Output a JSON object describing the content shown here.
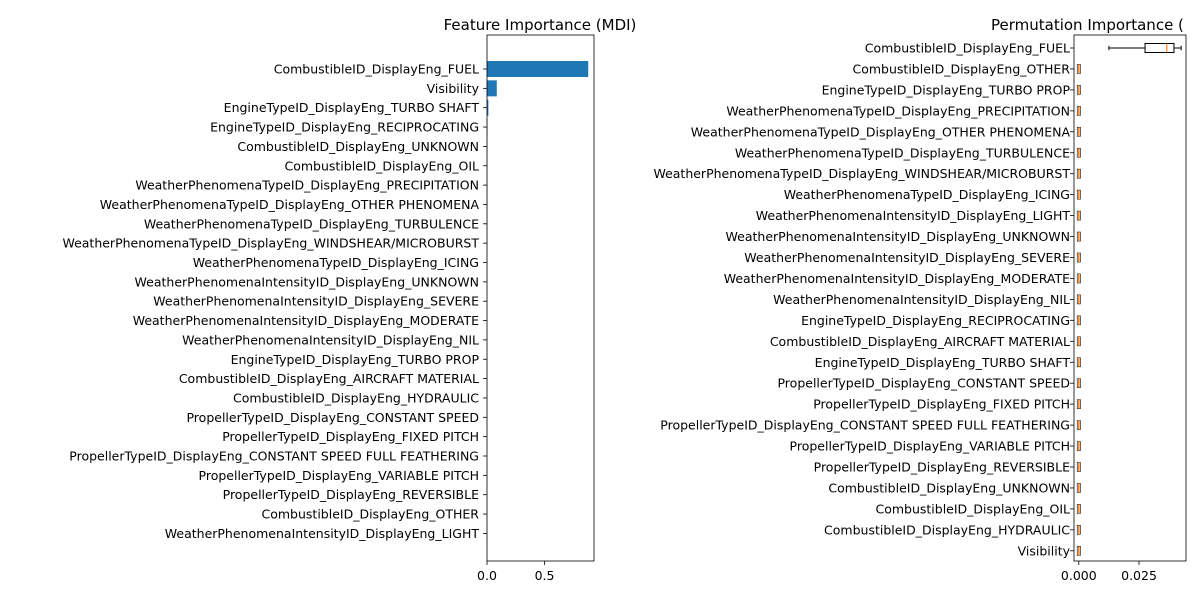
{
  "chart_data": [
    {
      "type": "bar",
      "orientation": "horizontal",
      "title": "Feature Importance (MDI)",
      "xlabel": "",
      "ylabel": "",
      "xlim": [
        0,
        0.93
      ],
      "xticks": [
        "0.0",
        "0.5"
      ],
      "xtick_values": [
        0,
        0.5
      ],
      "bar_color": "#1f77b4",
      "categories": [
        "CombustibleID_DisplayEng_FUEL",
        "Visibility",
        "EngineTypeID_DisplayEng_TURBO SHAFT",
        "EngineTypeID_DisplayEng_RECIPROCATING",
        "CombustibleID_DisplayEng_UNKNOWN",
        "CombustibleID_DisplayEng_OIL",
        "WeatherPhenomenaTypeID_DisplayEng_PRECIPITATION",
        "WeatherPhenomenaTypeID_DisplayEng_OTHER PHENOMENA",
        "WeatherPhenomenaTypeID_DisplayEng_TURBULENCE",
        "WeatherPhenomenaTypeID_DisplayEng_WINDSHEAR/MICROBURST",
        "WeatherPhenomenaTypeID_DisplayEng_ICING",
        "WeatherPhenomenaIntensityID_DisplayEng_UNKNOWN",
        "WeatherPhenomenaIntensityID_DisplayEng_SEVERE",
        "WeatherPhenomenaIntensityID_DisplayEng_MODERATE",
        "WeatherPhenomenaIntensityID_DisplayEng_NIL",
        "EngineTypeID_DisplayEng_TURBO PROP",
        "CombustibleID_DisplayEng_AIRCRAFT MATERIAL",
        "CombustibleID_DisplayEng_HYDRAULIC",
        "PropellerTypeID_DisplayEng_CONSTANT SPEED",
        "PropellerTypeID_DisplayEng_FIXED PITCH",
        "PropellerTypeID_DisplayEng_CONSTANT SPEED FULL FEATHERING",
        "PropellerTypeID_DisplayEng_VARIABLE PITCH",
        "PropellerTypeID_DisplayEng_REVERSIBLE",
        "CombustibleID_DisplayEng_OTHER",
        "WeatherPhenomenaIntensityID_DisplayEng_LIGHT"
      ],
      "values": [
        0.88,
        0.085,
        0.012,
        0.004,
        0.003,
        0.002,
        0.002,
        0.002,
        0.0015,
        0.0015,
        0.001,
        0.001,
        0.001,
        0.001,
        0.001,
        0.001,
        0.0008,
        0.0008,
        0.0006,
        0.0006,
        0.0005,
        0.0005,
        0.0004,
        0.0003,
        0.0002
      ]
    },
    {
      "type": "boxplot",
      "orientation": "horizontal",
      "title": "Permutation Importance (",
      "xlabel": "",
      "ylabel": "",
      "xlim": [
        -0.002,
        0.0445
      ],
      "xticks": [
        "0.000",
        "0.025"
      ],
      "xtick_values": [
        0,
        0.025
      ],
      "box_edge_color": "#000000",
      "median_color": "#ff7f0e",
      "categories": [
        "CombustibleID_DisplayEng_FUEL",
        "CombustibleID_DisplayEng_OTHER",
        "EngineTypeID_DisplayEng_TURBO PROP",
        "WeatherPhenomenaTypeID_DisplayEng_PRECIPITATION",
        "WeatherPhenomenaTypeID_DisplayEng_OTHER PHENOMENA",
        "WeatherPhenomenaTypeID_DisplayEng_TURBULENCE",
        "WeatherPhenomenaTypeID_DisplayEng_WINDSHEAR/MICROBURST",
        "WeatherPhenomenaTypeID_DisplayEng_ICING",
        "WeatherPhenomenaIntensityID_DisplayEng_LIGHT",
        "WeatherPhenomenaIntensityID_DisplayEng_UNKNOWN",
        "WeatherPhenomenaIntensityID_DisplayEng_SEVERE",
        "WeatherPhenomenaIntensityID_DisplayEng_MODERATE",
        "WeatherPhenomenaIntensityID_DisplayEng_NIL",
        "EngineTypeID_DisplayEng_RECIPROCATING",
        "CombustibleID_DisplayEng_AIRCRAFT MATERIAL",
        "EngineTypeID_DisplayEng_TURBO SHAFT",
        "PropellerTypeID_DisplayEng_CONSTANT SPEED",
        "PropellerTypeID_DisplayEng_FIXED PITCH",
        "PropellerTypeID_DisplayEng_CONSTANT SPEED FULL FEATHERING",
        "PropellerTypeID_DisplayEng_VARIABLE PITCH",
        "PropellerTypeID_DisplayEng_REVERSIBLE",
        "CombustibleID_DisplayEng_UNKNOWN",
        "CombustibleID_DisplayEng_OIL",
        "CombustibleID_DisplayEng_HYDRAULIC",
        "Visibility"
      ],
      "boxes": [
        {
          "min": 0.0125,
          "q1": 0.0275,
          "median": 0.0365,
          "q3": 0.0395,
          "max": 0.0425
        },
        {
          "min": 0,
          "q1": 0,
          "median": 0,
          "q3": 0,
          "max": 0
        },
        {
          "min": 0,
          "q1": 0,
          "median": 0,
          "q3": 0,
          "max": 0
        },
        {
          "min": 0,
          "q1": 0,
          "median": 0,
          "q3": 0,
          "max": 0
        },
        {
          "min": 0,
          "q1": 0,
          "median": 0,
          "q3": 0,
          "max": 0
        },
        {
          "min": 0,
          "q1": 0,
          "median": 0,
          "q3": 0,
          "max": 0
        },
        {
          "min": 0,
          "q1": 0,
          "median": 0,
          "q3": 0,
          "max": 0
        },
        {
          "min": 0,
          "q1": 0,
          "median": 0,
          "q3": 0,
          "max": 0
        },
        {
          "min": 0,
          "q1": 0,
          "median": 0,
          "q3": 0,
          "max": 0
        },
        {
          "min": 0,
          "q1": 0,
          "median": 0,
          "q3": 0,
          "max": 0
        },
        {
          "min": 0,
          "q1": 0,
          "median": 0,
          "q3": 0,
          "max": 0
        },
        {
          "min": 0,
          "q1": 0,
          "median": 0,
          "q3": 0,
          "max": 0
        },
        {
          "min": 0,
          "q1": 0,
          "median": 0,
          "q3": 0,
          "max": 0
        },
        {
          "min": 0,
          "q1": 0,
          "median": 0,
          "q3": 0,
          "max": 0
        },
        {
          "min": 0,
          "q1": 0,
          "median": 0,
          "q3": 0,
          "max": 0
        },
        {
          "min": 0,
          "q1": 0,
          "median": 0,
          "q3": 0,
          "max": 0
        },
        {
          "min": 0,
          "q1": 0,
          "median": 0,
          "q3": 0,
          "max": 0
        },
        {
          "min": 0,
          "q1": 0,
          "median": 0,
          "q3": 0,
          "max": 0
        },
        {
          "min": 0,
          "q1": 0,
          "median": 0,
          "q3": 0,
          "max": 0
        },
        {
          "min": 0,
          "q1": 0,
          "median": 0,
          "q3": 0,
          "max": 0
        },
        {
          "min": 0,
          "q1": 0,
          "median": 0,
          "q3": 0,
          "max": 0
        },
        {
          "min": 0,
          "q1": 0,
          "median": 0,
          "q3": 0,
          "max": 0
        },
        {
          "min": 0,
          "q1": 0,
          "median": 0,
          "q3": 0,
          "max": 0
        },
        {
          "min": 0,
          "q1": 0,
          "median": 0,
          "q3": 0,
          "max": 0
        },
        {
          "min": 0,
          "q1": 0,
          "median": 0,
          "q3": 0,
          "max": 0
        }
      ]
    }
  ]
}
